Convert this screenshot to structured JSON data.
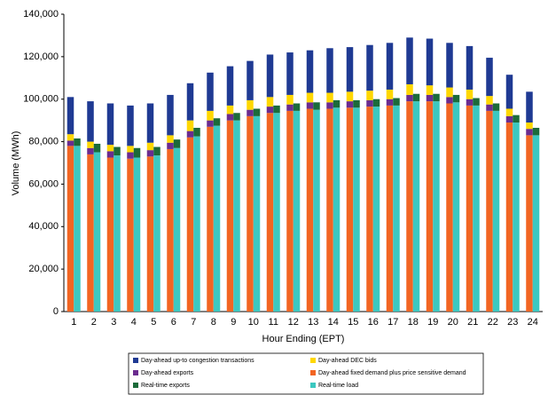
{
  "chart_data": {
    "type": "bar",
    "x_label": "Hour Ending (EPT)",
    "y_label": "Volume (MWh)",
    "categories": [
      "1",
      "2",
      "3",
      "4",
      "5",
      "6",
      "7",
      "8",
      "9",
      "10",
      "11",
      "12",
      "13",
      "14",
      "15",
      "16",
      "17",
      "18",
      "19",
      "20",
      "21",
      "22",
      "23",
      "24"
    ],
    "ylim": [
      0,
      140000
    ],
    "yticks": [
      {
        "value": 0,
        "label": "0"
      },
      {
        "value": 20000,
        "label": "20,000"
      },
      {
        "value": 40000,
        "label": "40,000"
      },
      {
        "value": 60000,
        "label": "60,000"
      },
      {
        "value": 80000,
        "label": "80,000"
      },
      {
        "value": 100000,
        "label": "100,000"
      },
      {
        "value": 120000,
        "label": "120,000"
      },
      {
        "value": 140000,
        "label": "140,000"
      }
    ],
    "stacked": true,
    "legend": "bottom",
    "series": [
      {
        "name": "Day-ahead up-to congestion transactions",
        "color": "#1f3a93",
        "stack": 0,
        "values": [
          17500,
          19000,
          19500,
          19000,
          18500,
          19000,
          17500,
          18000,
          18500,
          18500,
          20000,
          20000,
          20000,
          21000,
          21000,
          21500,
          22000,
          22000,
          22000,
          21000,
          20500,
          18000,
          16000,
          14500
        ]
      },
      {
        "name": "Day-ahead DEC bids",
        "color": "#ffd700",
        "stack": 0,
        "values": [
          3000,
          3000,
          3000,
          3000,
          3500,
          3500,
          5000,
          4500,
          4000,
          4500,
          4500,
          4500,
          4500,
          4500,
          4500,
          4500,
          4500,
          5000,
          4500,
          4500,
          4500,
          4000,
          3500,
          3000
        ]
      },
      {
        "name": "Day-ahead exports",
        "color": "#6b2c8f",
        "stack": 0,
        "values": [
          2500,
          3000,
          3000,
          3000,
          3000,
          3000,
          3000,
          3000,
          3000,
          3000,
          3000,
          3000,
          3000,
          3000,
          3000,
          3000,
          3000,
          3000,
          3000,
          3000,
          3000,
          3000,
          3000,
          3000
        ]
      },
      {
        "name": "Day-ahead fixed demand plus price sensitive demand",
        "color": "#f26522",
        "stack": 0,
        "values": [
          78000,
          74000,
          72500,
          72000,
          73000,
          76500,
          82000,
          87000,
          90000,
          92000,
          93500,
          94500,
          95500,
          95500,
          96000,
          96500,
          97000,
          99000,
          99000,
          98000,
          97000,
          94500,
          89000,
          83000
        ]
      },
      {
        "name": "Real-time exports",
        "color": "#1b6b3a",
        "stack": 1,
        "values": [
          3500,
          4000,
          4000,
          4500,
          4000,
          4000,
          4000,
          3500,
          3500,
          3500,
          3500,
          3500,
          3500,
          3500,
          3500,
          3500,
          3500,
          3500,
          3500,
          3500,
          3500,
          3500,
          3500,
          3500
        ]
      },
      {
        "name": "Real-time load",
        "color": "#3cc8c0",
        "stack": 1,
        "values": [
          78000,
          75000,
          73500,
          72500,
          73500,
          77000,
          82500,
          87500,
          90000,
          92000,
          93500,
          94500,
          95000,
          96000,
          96000,
          96500,
          97000,
          99000,
          99000,
          98500,
          97000,
          94500,
          89000,
          83000
        ]
      }
    ]
  }
}
